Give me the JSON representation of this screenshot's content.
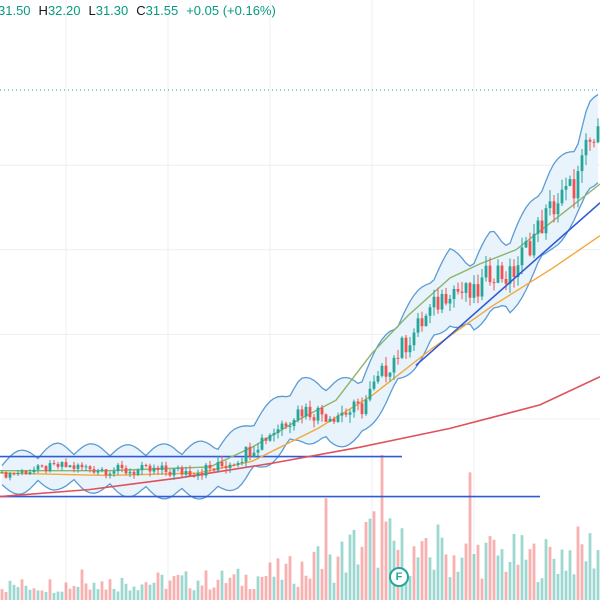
{
  "legend": {
    "open_value": "31.50",
    "high_label": "H",
    "high_value": "32.20",
    "low_label": "L",
    "low_value": "31.30",
    "close_label": "C",
    "close_value": "31.55",
    "change_text": "+0.05 (+0.16%)"
  },
  "event_marker": {
    "label": "F",
    "icon": "earnings-flag-icon"
  },
  "colors": {
    "up": "#26a69a",
    "down": "#ef5350",
    "bollinger": "#5b9bd5",
    "bollinger_fill": "#e8f3fc",
    "ema_short": "#8bb56b",
    "ema_mid": "#f2a83b",
    "ema_long": "#e0515b",
    "trendline": "#2f5bd3",
    "dotted_level": "#26a69a",
    "grid": "#eceff3"
  },
  "chart_data": {
    "type": "candlestick",
    "price_range": [
      0,
      100
    ],
    "volume_range": [
      0,
      100
    ],
    "horizontal_levels": [
      {
        "value": 22.0,
        "from": 0,
        "to": 0.67
      },
      {
        "value": 13.5,
        "from": 0,
        "to": 0.9
      }
    ],
    "dotted_level": 100,
    "trendline": {
      "from": [
        0.693,
        41.4
      ],
      "to": [
        1.0,
        76.0
      ]
    },
    "ema_long_path": [
      [
        0,
        13.5
      ],
      [
        0.15,
        15
      ],
      [
        0.3,
        17.5
      ],
      [
        0.45,
        20.5
      ],
      [
        0.6,
        24
      ],
      [
        0.75,
        28
      ],
      [
        0.9,
        33
      ],
      [
        1.0,
        39
      ]
    ],
    "ema_mid_path": [
      [
        0,
        18.5
      ],
      [
        0.18,
        18
      ],
      [
        0.33,
        18.5
      ],
      [
        0.42,
        21
      ],
      [
        0.53,
        28
      ],
      [
        0.62,
        35
      ],
      [
        0.72,
        45
      ],
      [
        0.82,
        54
      ],
      [
        0.92,
        62
      ],
      [
        1.0,
        69
      ]
    ],
    "ema_short_path": [
      [
        0,
        19
      ],
      [
        0.18,
        19
      ],
      [
        0.35,
        19.8
      ],
      [
        0.42,
        24
      ],
      [
        0.5,
        30
      ],
      [
        0.56,
        34
      ],
      [
        0.62,
        44
      ],
      [
        0.68,
        52
      ],
      [
        0.75,
        60
      ],
      [
        0.8,
        63
      ],
      [
        0.86,
        66
      ],
      [
        0.93,
        73
      ],
      [
        1.0,
        80
      ]
    ],
    "price_path": [
      [
        0,
        18
      ],
      [
        0.1,
        20
      ],
      [
        0.2,
        19
      ],
      [
        0.3,
        18.8
      ],
      [
        0.36,
        19.4
      ],
      [
        0.4,
        22
      ],
      [
        0.45,
        27
      ],
      [
        0.5,
        32
      ],
      [
        0.55,
        31
      ],
      [
        0.6,
        32
      ],
      [
        0.65,
        42
      ],
      [
        0.7,
        50
      ],
      [
        0.75,
        58
      ],
      [
        0.79,
        56
      ],
      [
        0.82,
        62
      ],
      [
        0.85,
        60
      ],
      [
        0.88,
        67
      ],
      [
        0.92,
        75
      ],
      [
        0.96,
        80
      ],
      [
        0.98,
        88
      ],
      [
        1.0,
        90
      ]
    ],
    "volume_profile": [
      [
        0,
        12
      ],
      [
        0.4,
        18
      ],
      [
        0.55,
        30
      ],
      [
        0.62,
        55
      ],
      [
        0.7,
        35
      ],
      [
        0.8,
        40
      ],
      [
        0.9,
        35
      ],
      [
        1.0,
        45
      ]
    ]
  }
}
